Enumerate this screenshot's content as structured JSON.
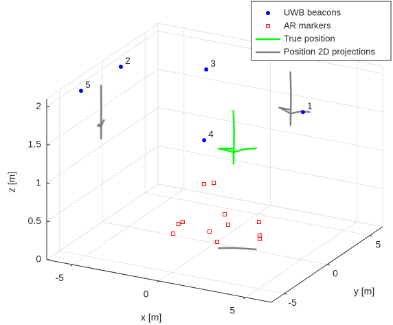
{
  "chart_data": {
    "type": "scatter3d",
    "xlabel": "x [m]",
    "ylabel": "y [m]",
    "zlabel": "z [m]",
    "xlim": [
      -6.5,
      6.5
    ],
    "ylim": [
      -6.5,
      6.5
    ],
    "zlim": [
      0,
      2.1
    ],
    "xticks": [
      -5,
      0,
      5
    ],
    "yticks": [
      -5,
      0,
      5
    ],
    "zticks": [
      0,
      0.5,
      1,
      1.5,
      2
    ],
    "grid": true,
    "legend": "northeast",
    "series": [
      {
        "name": "UWB beacons",
        "color": "#0000ff",
        "marker": "circle",
        "x": [
          4.95,
          -5.8,
          -1.76,
          0.31,
          -6.0
        ],
        "y": [
          0.32,
          0.75,
          2.56,
          -1.86,
          -3.5
        ],
        "z": [
          1.9,
          2.0,
          2.0,
          1.5,
          2.0
        ],
        "labels": [
          "1",
          "2",
          "3",
          "4",
          "5"
        ]
      },
      {
        "name": "AR markers",
        "color": "#ff0000",
        "marker": "square",
        "x": [
          -2.52,
          -2.92,
          -2.87,
          -1.47,
          -0.63,
          -1.01,
          0.01,
          1.51,
          0.58,
          1.76,
          -0.34,
          0.01
        ],
        "y": [
          0.24,
          1.67,
          2.05,
          4.14,
          2.84,
          1.44,
          0.25,
          2.2,
          4.0,
          1.71,
          -0.56,
          -0.13
        ],
        "z": [
          0,
          0,
          0,
          0,
          0,
          0,
          0,
          0,
          0,
          0,
          0.8,
          0.8
        ]
      },
      {
        "name": "True position",
        "color": "#00ff00",
        "marker": "none",
        "x": [
          1.16,
          1.19,
          1.17,
          1.17,
          0.51,
          0.81,
          1.17,
          1.71,
          2.31
        ],
        "y": [
          -0.16,
          -0.14,
          -0.16,
          -0.16,
          -0.56,
          -0.36,
          -0.16,
          0.04,
          0.24
        ],
        "z": [
          1.8,
          1.5,
          1.1,
          1.3,
          1.3,
          1.28,
          1.25,
          1.3,
          1.32
        ]
      },
      {
        "name": "Position 2D projections",
        "color": "#808080",
        "marker": "none",
        "x": [
          -6.5,
          -6.5,
          -6.5,
          -6.5,
          -6.5,
          -6.5,
          -6.5,
          -6.5,
          -6.5,
          null,
          1.16,
          1.19,
          1.17,
          1.17,
          0.51,
          0.81,
          1.17,
          1.71,
          2.31,
          null,
          1.16,
          1.19,
          1.17,
          1.17,
          0.51,
          0.81,
          1.17,
          1.71,
          2.31
        ],
        "y": [
          -0.16,
          -0.14,
          -0.16,
          -0.16,
          -0.56,
          -0.36,
          -0.16,
          0.04,
          0.24,
          null,
          6.5,
          6.5,
          6.5,
          6.5,
          6.5,
          6.5,
          6.5,
          6.5,
          6.5,
          null,
          -0.16,
          -0.14,
          -0.16,
          -0.16,
          -0.56,
          -0.36,
          -0.16,
          0.04,
          0.24
        ],
        "z": [
          1.8,
          1.5,
          1.1,
          1.3,
          1.3,
          1.28,
          1.25,
          1.3,
          1.32,
          null,
          1.8,
          1.5,
          1.1,
          1.3,
          1.3,
          1.28,
          1.25,
          1.3,
          1.32,
          null,
          0,
          0,
          0,
          0,
          0,
          0,
          0,
          0,
          0
        ]
      }
    ]
  }
}
